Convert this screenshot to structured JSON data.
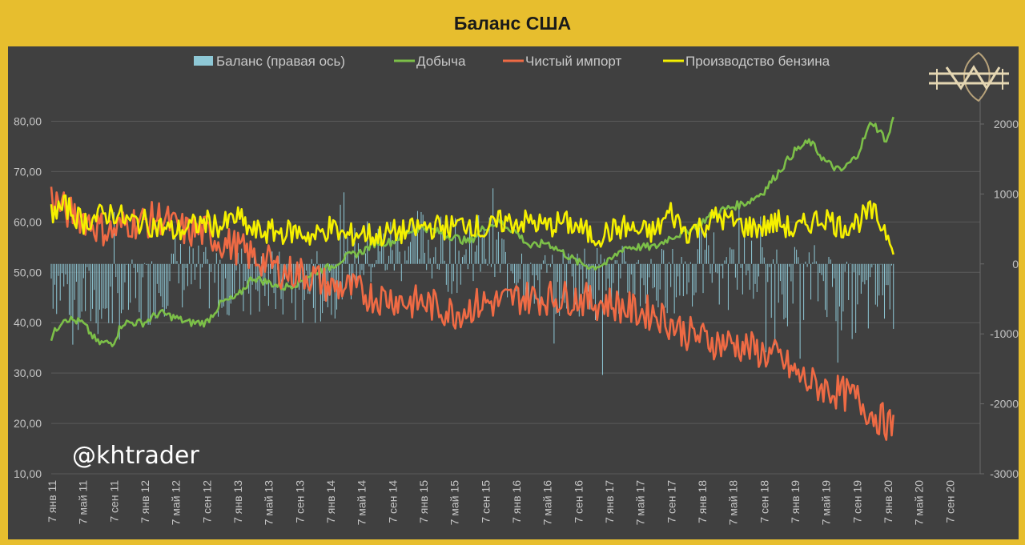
{
  "title": "Баланс США",
  "watermark": "@khtrader",
  "chart_data": {
    "type": "line",
    "legend": [
      {
        "name": "Баланс (правая ось)",
        "color": "#8ec8d6",
        "kind": "bar"
      },
      {
        "name": "Добыча",
        "color": "#7cbf48",
        "kind": "line"
      },
      {
        "name": "Чистый импорт",
        "color": "#ef6a44",
        "kind": "line"
      },
      {
        "name": "Производство бензина",
        "color": "#f5f000",
        "kind": "line"
      }
    ],
    "legend_position": "top",
    "grid": true,
    "x_labels": [
      "7 янв 11",
      "7 май 11",
      "7 сен 11",
      "7 янв 12",
      "7 май 12",
      "7 сен 12",
      "7 янв 13",
      "7 май 13",
      "7 сен 13",
      "7 янв 14",
      "7 май 14",
      "7 сен 14",
      "7 янв 15",
      "7 май 15",
      "7 сен 15",
      "7 янв 16",
      "7 май 16",
      "7 сен 16",
      "7 янв 17",
      "7 май 17",
      "7 сен 17",
      "7 янв 18",
      "7 май 18",
      "7 сен 18",
      "7 янв 19",
      "7 май 19",
      "7 сен 19",
      "7 янв 20",
      "7 май 20",
      "7 сен 20"
    ],
    "y_left": {
      "ticks": [
        "10,00",
        "20,00",
        "30,00",
        "40,00",
        "50,00",
        "60,00",
        "70,00",
        "80,00"
      ],
      "min": 10,
      "max": 85
    },
    "y_right": {
      "ticks": [
        "-3000",
        "-2000",
        "-1000",
        "0",
        "1000",
        "2000"
      ],
      "min": -3000,
      "max": 2400
    },
    "anchors": {
      "dobycha": [
        [
          0,
          37
        ],
        [
          0.4,
          41
        ],
        [
          1,
          40
        ],
        [
          1.5,
          36
        ],
        [
          2,
          36
        ],
        [
          2.3,
          40
        ],
        [
          3,
          40
        ],
        [
          3.5,
          42
        ],
        [
          4,
          41
        ],
        [
          4.4,
          40
        ],
        [
          5,
          40
        ],
        [
          5.5,
          44
        ],
        [
          6,
          45
        ],
        [
          6.5,
          49
        ],
        [
          7,
          48
        ],
        [
          7.5,
          47
        ],
        [
          8,
          48
        ],
        [
          8.5,
          50
        ],
        [
          9,
          51
        ],
        [
          9.5,
          53
        ],
        [
          10,
          54
        ],
        [
          10.5,
          56
        ],
        [
          11,
          56
        ],
        [
          11.5,
          58
        ],
        [
          12,
          59
        ],
        [
          12.5,
          58
        ],
        [
          13,
          57
        ],
        [
          13.5,
          56
        ],
        [
          14,
          59
        ],
        [
          14.5,
          60
        ],
        [
          15,
          58
        ],
        [
          15.5,
          55
        ],
        [
          16,
          56
        ],
        [
          16.5,
          54
        ],
        [
          17,
          52
        ],
        [
          17.5,
          51
        ],
        [
          18,
          52
        ],
        [
          18.5,
          55
        ],
        [
          19,
          55
        ],
        [
          19.5,
          55
        ],
        [
          20,
          57
        ],
        [
          20.5,
          58
        ],
        [
          21,
          60
        ],
        [
          21.5,
          62
        ],
        [
          22,
          63
        ],
        [
          22.5,
          64
        ],
        [
          23,
          66
        ],
        [
          23.5,
          70
        ],
        [
          24,
          74
        ],
        [
          24.5,
          76
        ],
        [
          25,
          72
        ],
        [
          25.5,
          70
        ],
        [
          26,
          73
        ],
        [
          26.5,
          80
        ],
        [
          27,
          76
        ],
        [
          27.2,
          81
        ]
      ],
      "import": [
        [
          0,
          65
        ],
        [
          0.5,
          62
        ],
        [
          1,
          61
        ],
        [
          1.5,
          59
        ],
        [
          2,
          58
        ],
        [
          2.5,
          60
        ],
        [
          3,
          60
        ],
        [
          3.5,
          61
        ],
        [
          4,
          59
        ],
        [
          4.5,
          58
        ],
        [
          5,
          58
        ],
        [
          5.5,
          56
        ],
        [
          6,
          55
        ],
        [
          6.5,
          53
        ],
        [
          7,
          52
        ],
        [
          7.5,
          50
        ],
        [
          8,
          50
        ],
        [
          8.5,
          49
        ],
        [
          9,
          47
        ],
        [
          9.5,
          47
        ],
        [
          10,
          46
        ],
        [
          10.5,
          45
        ],
        [
          11,
          45
        ],
        [
          11.5,
          44
        ],
        [
          12,
          44
        ],
        [
          12.5,
          43
        ],
        [
          13,
          42
        ],
        [
          13.5,
          43
        ],
        [
          14,
          44
        ],
        [
          14.5,
          44
        ],
        [
          15,
          45
        ],
        [
          15.5,
          45
        ],
        [
          16,
          45
        ],
        [
          16.5,
          45
        ],
        [
          17,
          45
        ],
        [
          17.5,
          44
        ],
        [
          18,
          44
        ],
        [
          18.5,
          43
        ],
        [
          19,
          42
        ],
        [
          19.5,
          42
        ],
        [
          20,
          40
        ],
        [
          20.5,
          38
        ],
        [
          21,
          37
        ],
        [
          21.5,
          36
        ],
        [
          22,
          36
        ],
        [
          22.5,
          35
        ],
        [
          23,
          34
        ],
        [
          23.5,
          33
        ],
        [
          24,
          30
        ],
        [
          24.5,
          28
        ],
        [
          25,
          27
        ],
        [
          25.5,
          26
        ],
        [
          26,
          25
        ],
        [
          26.5,
          22
        ],
        [
          27,
          20
        ],
        [
          27.2,
          19
        ]
      ],
      "benzin": [
        [
          0,
          62
        ],
        [
          0.5,
          63
        ],
        [
          1,
          60
        ],
        [
          1.5,
          61
        ],
        [
          2,
          62
        ],
        [
          2.5,
          60
        ],
        [
          3,
          60
        ],
        [
          3.5,
          59
        ],
        [
          4,
          58
        ],
        [
          4.5,
          59
        ],
        [
          5,
          60
        ],
        [
          5.5,
          59
        ],
        [
          6,
          61
        ],
        [
          6.5,
          58
        ],
        [
          7,
          58
        ],
        [
          7.5,
          58
        ],
        [
          8,
          58
        ],
        [
          8.5,
          57
        ],
        [
          9,
          59
        ],
        [
          9.5,
          57
        ],
        [
          10,
          58
        ],
        [
          10.5,
          57
        ],
        [
          11,
          58
        ],
        [
          11.5,
          58
        ],
        [
          12,
          59
        ],
        [
          12.5,
          59
        ],
        [
          13,
          59
        ],
        [
          13.5,
          60
        ],
        [
          14,
          58
        ],
        [
          14.5,
          60
        ],
        [
          15,
          60
        ],
        [
          15.5,
          60
        ],
        [
          16,
          59
        ],
        [
          16.5,
          60
        ],
        [
          17,
          59
        ],
        [
          17.5,
          57
        ],
        [
          18,
          58
        ],
        [
          18.5,
          59
        ],
        [
          19,
          58
        ],
        [
          19.5,
          58
        ],
        [
          20,
          62
        ],
        [
          20.5,
          58
        ],
        [
          21,
          59
        ],
        [
          21.5,
          61
        ],
        [
          22,
          60
        ],
        [
          22.5,
          59
        ],
        [
          23,
          59
        ],
        [
          23.5,
          60
        ],
        [
          24,
          58
        ],
        [
          24.5,
          60
        ],
        [
          25,
          61
        ],
        [
          25.5,
          59
        ],
        [
          26,
          60
        ],
        [
          26.5,
          62
        ],
        [
          27,
          58
        ],
        [
          27.2,
          56
        ]
      ],
      "balance_env": [
        [
          0,
          -200
        ],
        [
          1,
          -500
        ],
        [
          2,
          -600
        ],
        [
          3,
          -400
        ],
        [
          4,
          -100
        ],
        [
          5,
          -300
        ],
        [
          6,
          -200
        ],
        [
          7,
          -300
        ],
        [
          8,
          -400
        ],
        [
          9,
          -300
        ],
        [
          10,
          100
        ],
        [
          11,
          200
        ],
        [
          12,
          300
        ],
        [
          13,
          100
        ],
        [
          14,
          200
        ],
        [
          15,
          0
        ],
        [
          16,
          -300
        ],
        [
          17,
          -200
        ],
        [
          18,
          -300
        ],
        [
          19,
          -200
        ],
        [
          20,
          -300
        ],
        [
          21,
          0
        ],
        [
          22,
          100
        ],
        [
          23,
          -200
        ],
        [
          24,
          -300
        ],
        [
          25,
          -200
        ],
        [
          26,
          -600
        ],
        [
          27,
          -400
        ]
      ]
    }
  }
}
